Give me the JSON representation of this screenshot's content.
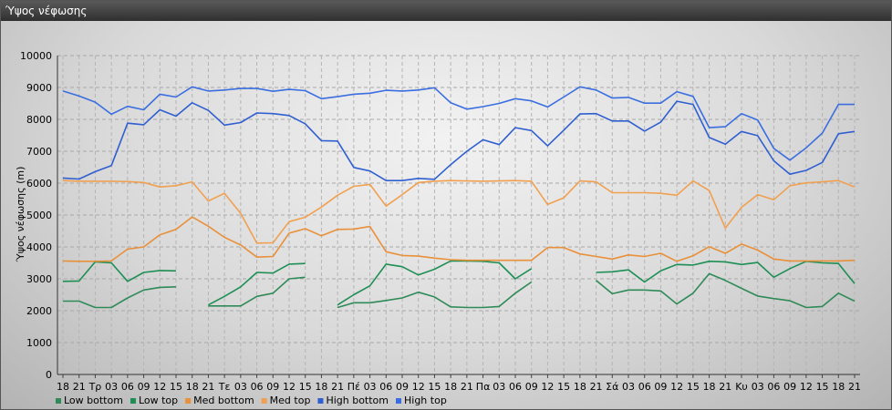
{
  "window": {
    "title": "Ύψος νέφωσης"
  },
  "chart_data": {
    "type": "line",
    "title": "",
    "xlabel": "",
    "ylabel": "Ύψος νέφωσης (m)",
    "ylim": [
      0,
      10000
    ],
    "yticks": [
      0,
      1000,
      2000,
      3000,
      4000,
      5000,
      6000,
      7000,
      8000,
      9000,
      10000
    ],
    "grid": true,
    "legend_position": "bottom-left",
    "categories": [
      "18",
      "21",
      "Τρ",
      "03",
      "06",
      "09",
      "12",
      "15",
      "18",
      "21",
      "Τε",
      "03",
      "06",
      "09",
      "12",
      "15",
      "18",
      "21",
      "Πέ",
      "03",
      "06",
      "09",
      "12",
      "15",
      "18",
      "21",
      "Πα",
      "03",
      "06",
      "09",
      "12",
      "15",
      "18",
      "21",
      "Σά",
      "03",
      "06",
      "09",
      "12",
      "15",
      "18",
      "21",
      "Κυ",
      "03",
      "06",
      "09",
      "12",
      "15",
      "18",
      "21"
    ],
    "series": [
      {
        "name": "Low bottom",
        "color": "#2e8b57",
        "values": [
          2300,
          2300,
          2100,
          2100,
          2400,
          2650,
          2730,
          2750,
          null,
          2150,
          2150,
          2150,
          2450,
          2550,
          3000,
          3050,
          null,
          2100,
          2250,
          2250,
          2320,
          2400,
          2580,
          2430,
          2120,
          2100,
          2100,
          2130,
          2550,
          2900,
          null,
          null,
          null,
          2950,
          2530,
          2650,
          2650,
          2620,
          2210,
          2550,
          3160,
          2950,
          2700,
          2460,
          2380,
          2310,
          2100,
          2130,
          2550,
          2300
        ]
      },
      {
        "name": "Low top",
        "color": "#1e8f54",
        "values": [
          2920,
          2930,
          3530,
          3500,
          2920,
          3200,
          3260,
          3250,
          null,
          2180,
          2450,
          2750,
          3200,
          3180,
          3460,
          3480,
          null,
          2180,
          2500,
          2780,
          3460,
          3380,
          3120,
          3300,
          3560,
          3560,
          3550,
          3500,
          3000,
          3320,
          null,
          null,
          null,
          3200,
          3220,
          3280,
          2900,
          3250,
          3450,
          3430,
          3550,
          3530,
          3450,
          3510,
          3050,
          3320,
          3550,
          3500,
          3480,
          2850
        ]
      },
      {
        "name": "Med bottom",
        "color": "#e8903a",
        "values": [
          3560,
          3550,
          3550,
          3560,
          3930,
          4000,
          4380,
          4550,
          4940,
          4650,
          4300,
          4060,
          3680,
          3700,
          4430,
          4570,
          4350,
          4550,
          4560,
          4640,
          3850,
          3730,
          3710,
          3650,
          3600,
          3580,
          3580,
          3580,
          3580,
          3580,
          3980,
          3980,
          3780,
          3700,
          3620,
          3750,
          3700,
          3800,
          3550,
          3720,
          4010,
          3800,
          4090,
          3900,
          3620,
          3560,
          3560,
          3560,
          3560,
          3580
        ]
      },
      {
        "name": "Med top",
        "color": "#f0a050",
        "values": [
          6080,
          6060,
          6060,
          6060,
          6050,
          6020,
          5880,
          5920,
          6040,
          5440,
          5680,
          5050,
          4120,
          4130,
          4790,
          4930,
          5250,
          5620,
          5900,
          5960,
          5280,
          5640,
          6020,
          6060,
          6080,
          6070,
          6060,
          6070,
          6080,
          6060,
          5330,
          5540,
          6070,
          6040,
          5700,
          5700,
          5700,
          5680,
          5620,
          6070,
          5770,
          4590,
          5240,
          5640,
          5480,
          5920,
          6010,
          6040,
          6080,
          5880
        ]
      },
      {
        "name": "High bottom",
        "color": "#2f5fd0",
        "values": [
          6160,
          6130,
          6360,
          6550,
          7880,
          7830,
          8300,
          8100,
          8520,
          8280,
          7820,
          7900,
          8200,
          8180,
          8120,
          7860,
          7330,
          7320,
          6490,
          6380,
          6080,
          6080,
          6150,
          6120,
          6580,
          7000,
          7360,
          7210,
          7740,
          7650,
          7170,
          7660,
          8170,
          8180,
          7950,
          7950,
          7630,
          7910,
          8570,
          8470,
          7430,
          7220,
          7620,
          7490,
          6700,
          6280,
          6400,
          6650,
          7550,
          7620
        ]
      },
      {
        "name": "High top",
        "color": "#3a6ee0",
        "values": [
          8890,
          8730,
          8540,
          8160,
          8410,
          8300,
          8790,
          8700,
          9020,
          8890,
          8920,
          8970,
          8970,
          8880,
          8940,
          8900,
          8650,
          8710,
          8790,
          8820,
          8910,
          8890,
          8920,
          8990,
          8520,
          8320,
          8400,
          8500,
          8650,
          8580,
          8390,
          8700,
          9020,
          8920,
          8670,
          8690,
          8510,
          8510,
          8870,
          8720,
          7740,
          7770,
          8180,
          7980,
          7090,
          6720,
          7110,
          7570,
          8470,
          8470
        ]
      }
    ]
  }
}
